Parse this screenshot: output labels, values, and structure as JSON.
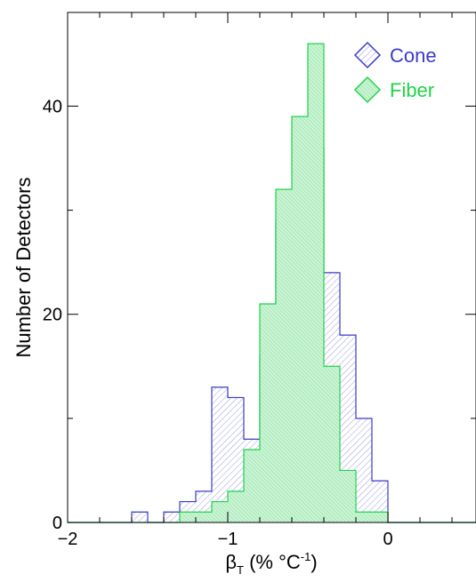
{
  "chart_data": {
    "type": "histogram",
    "xlabel_main": "β",
    "xlabel_sub": "T",
    "xlabel_rest": " (% °C",
    "xlabel_sup": "-1",
    "xlabel_close": ")",
    "ylabel": "Number of Detectors",
    "xlim": [
      -2.0,
      0.55
    ],
    "ylim": [
      0,
      49
    ],
    "xticks": [
      -2,
      -1,
      0
    ],
    "xtick_labels": [
      "−2",
      "−1",
      "0"
    ],
    "yticks": [
      0,
      20,
      40
    ],
    "ytick_labels": [
      "0",
      "20",
      "40"
    ],
    "grid": false,
    "legend_position": "top-right",
    "bin_width": 0.1,
    "series": [
      {
        "name": "Cone",
        "color": "#3b3bc8",
        "bins": [
          {
            "x0": -1.6,
            "count": 1
          },
          {
            "x0": -1.5,
            "count": 0
          },
          {
            "x0": -1.4,
            "count": 1
          },
          {
            "x0": -1.3,
            "count": 2
          },
          {
            "x0": -1.2,
            "count": 3
          },
          {
            "x0": -1.1,
            "count": 13
          },
          {
            "x0": -1.0,
            "count": 12
          },
          {
            "x0": -0.9,
            "count": 8
          },
          {
            "x0": -0.8,
            "count": 16
          },
          {
            "x0": -0.7,
            "count": 29
          },
          {
            "x0": -0.6,
            "count": 30
          },
          {
            "x0": -0.5,
            "count": 36
          },
          {
            "x0": -0.4,
            "count": 24
          },
          {
            "x0": -0.3,
            "count": 18
          },
          {
            "x0": -0.2,
            "count": 10
          },
          {
            "x0": -0.1,
            "count": 4
          }
        ]
      },
      {
        "name": "Fiber",
        "color": "#22d24a",
        "bins": [
          {
            "x0": -1.3,
            "count": 1
          },
          {
            "x0": -1.2,
            "count": 1
          },
          {
            "x0": -1.1,
            "count": 2
          },
          {
            "x0": -1.0,
            "count": 3
          },
          {
            "x0": -0.9,
            "count": 7
          },
          {
            "x0": -0.8,
            "count": 21
          },
          {
            "x0": -0.7,
            "count": 32
          },
          {
            "x0": -0.6,
            "count": 39
          },
          {
            "x0": -0.5,
            "count": 46
          },
          {
            "x0": -0.4,
            "count": 15
          },
          {
            "x0": -0.3,
            "count": 5
          },
          {
            "x0": -0.2,
            "count": 1
          },
          {
            "x0": -0.1,
            "count": 1
          }
        ]
      }
    ]
  }
}
